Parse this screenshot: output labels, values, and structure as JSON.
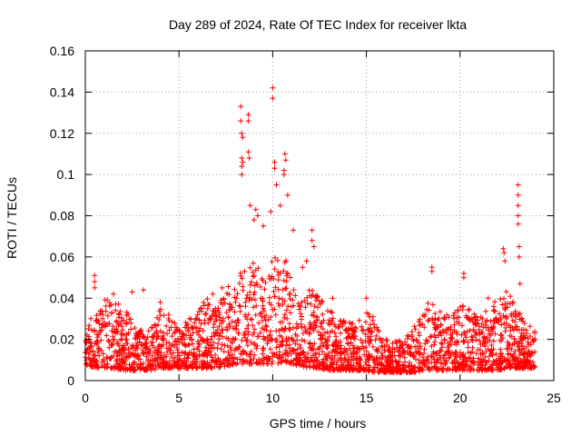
{
  "chart_data": {
    "type": "scatter",
    "title": "Day 289 of 2024, Rate Of TEC Index for receiver lkta",
    "xlabel": "GPS time / hours",
    "ylabel": "ROTI / TECUs",
    "xlim": [
      0,
      25
    ],
    "ylim": [
      0,
      0.16
    ],
    "grid": true,
    "marker": "+",
    "color": "#ff0000",
    "x_ticks": [
      "0",
      "5",
      "10",
      "15",
      "20",
      "25"
    ],
    "y_ticks": [
      "0",
      "0.02",
      "0.04",
      "0.06",
      "0.08",
      "0.1",
      "0.12",
      "0.14",
      "0.16"
    ],
    "x_tick_values": [
      0,
      5,
      10,
      15,
      20,
      25
    ],
    "y_tick_values": [
      0,
      0.02,
      0.04,
      0.06,
      0.08,
      0.1,
      0.12,
      0.14,
      0.16
    ],
    "series": [
      {
        "name": "ROTI",
        "description": "dense scatter of ROTI values; baseline envelope (approx) plus notable peaks",
        "envelope": {
          "x": [
            0,
            0.5,
            1,
            1.5,
            2,
            2.5,
            3,
            3.5,
            4,
            4.5,
            5,
            5.5,
            6,
            6.5,
            7,
            7.5,
            8,
            8.5,
            9,
            9.5,
            10,
            10.5,
            11,
            11.5,
            12,
            12.5,
            13,
            13.5,
            14,
            14.5,
            15,
            15.5,
            16,
            16.5,
            17,
            17.5,
            18,
            18.5,
            19,
            19.5,
            20,
            20.5,
            21,
            21.5,
            22,
            22.5,
            23,
            23.5,
            24
          ],
          "upper": [
            0.03,
            0.035,
            0.04,
            0.04,
            0.038,
            0.03,
            0.025,
            0.028,
            0.035,
            0.032,
            0.025,
            0.03,
            0.035,
            0.04,
            0.035,
            0.045,
            0.05,
            0.06,
            0.06,
            0.055,
            0.06,
            0.065,
            0.05,
            0.04,
            0.045,
            0.04,
            0.035,
            0.03,
            0.03,
            0.028,
            0.035,
            0.03,
            0.02,
            0.02,
            0.02,
            0.025,
            0.035,
            0.04,
            0.035,
            0.03,
            0.038,
            0.035,
            0.03,
            0.035,
            0.04,
            0.045,
            0.035,
            0.03,
            0.025
          ],
          "lower": [
            0.008,
            0.006,
            0.006,
            0.006,
            0.005,
            0.005,
            0.005,
            0.005,
            0.006,
            0.006,
            0.006,
            0.006,
            0.006,
            0.006,
            0.006,
            0.007,
            0.008,
            0.008,
            0.008,
            0.008,
            0.008,
            0.008,
            0.008,
            0.007,
            0.006,
            0.006,
            0.005,
            0.005,
            0.005,
            0.005,
            0.005,
            0.004,
            0.004,
            0.004,
            0.004,
            0.004,
            0.005,
            0.005,
            0.005,
            0.005,
            0.005,
            0.005,
            0.005,
            0.005,
            0.005,
            0.006,
            0.006,
            0.006,
            0.006
          ]
        },
        "peaks": [
          {
            "x": 8.3,
            "y": 0.133
          },
          {
            "x": 8.3,
            "y": 0.126
          },
          {
            "x": 8.35,
            "y": 0.12
          },
          {
            "x": 8.4,
            "y": 0.118
          },
          {
            "x": 8.35,
            "y": 0.108
          },
          {
            "x": 8.35,
            "y": 0.104
          },
          {
            "x": 8.35,
            "y": 0.1
          },
          {
            "x": 8.4,
            "y": 0.106
          },
          {
            "x": 8.7,
            "y": 0.129
          },
          {
            "x": 8.7,
            "y": 0.126
          },
          {
            "x": 8.7,
            "y": 0.111
          },
          {
            "x": 8.75,
            "y": 0.108
          },
          {
            "x": 10.0,
            "y": 0.142
          },
          {
            "x": 10.0,
            "y": 0.137
          },
          {
            "x": 10.1,
            "y": 0.106
          },
          {
            "x": 10.1,
            "y": 0.103
          },
          {
            "x": 10.2,
            "y": 0.095
          },
          {
            "x": 10.6,
            "y": 0.102
          },
          {
            "x": 10.6,
            "y": 0.1
          },
          {
            "x": 10.65,
            "y": 0.11
          },
          {
            "x": 10.7,
            "y": 0.107
          },
          {
            "x": 10.8,
            "y": 0.09
          },
          {
            "x": 9.1,
            "y": 0.083
          },
          {
            "x": 9.2,
            "y": 0.08
          },
          {
            "x": 9.5,
            "y": 0.075
          },
          {
            "x": 9.9,
            "y": 0.082
          },
          {
            "x": 10.4,
            "y": 0.085
          },
          {
            "x": 11.1,
            "y": 0.073
          },
          {
            "x": 12.1,
            "y": 0.073
          },
          {
            "x": 12.1,
            "y": 0.068
          },
          {
            "x": 12.2,
            "y": 0.065
          },
          {
            "x": 8.8,
            "y": 0.085
          },
          {
            "x": 9.0,
            "y": 0.078
          },
          {
            "x": 0.5,
            "y": 0.051
          },
          {
            "x": 0.5,
            "y": 0.048
          },
          {
            "x": 0.5,
            "y": 0.045
          },
          {
            "x": 18.5,
            "y": 0.055
          },
          {
            "x": 18.5,
            "y": 0.053
          },
          {
            "x": 20.2,
            "y": 0.052
          },
          {
            "x": 20.2,
            "y": 0.05
          },
          {
            "x": 22.3,
            "y": 0.064
          },
          {
            "x": 22.35,
            "y": 0.062
          },
          {
            "x": 22.4,
            "y": 0.058
          },
          {
            "x": 23.1,
            "y": 0.095
          },
          {
            "x": 23.1,
            "y": 0.09
          },
          {
            "x": 23.1,
            "y": 0.085
          },
          {
            "x": 23.1,
            "y": 0.08
          },
          {
            "x": 23.1,
            "y": 0.076
          },
          {
            "x": 23.15,
            "y": 0.065
          },
          {
            "x": 23.15,
            "y": 0.06
          },
          {
            "x": 23.2,
            "y": 0.047
          },
          {
            "x": 15.0,
            "y": 0.04
          },
          {
            "x": 4.0,
            "y": 0.038
          },
          {
            "x": 6.8,
            "y": 0.042
          },
          {
            "x": 7.3,
            "y": 0.045
          },
          {
            "x": 13.2,
            "y": 0.04
          },
          {
            "x": 11.8,
            "y": 0.058
          },
          {
            "x": 11.6,
            "y": 0.055
          },
          {
            "x": 21.5,
            "y": 0.04
          },
          {
            "x": 1.5,
            "y": 0.042
          },
          {
            "x": 2.5,
            "y": 0.043
          },
          {
            "x": 3.1,
            "y": 0.044
          }
        ]
      }
    ]
  }
}
